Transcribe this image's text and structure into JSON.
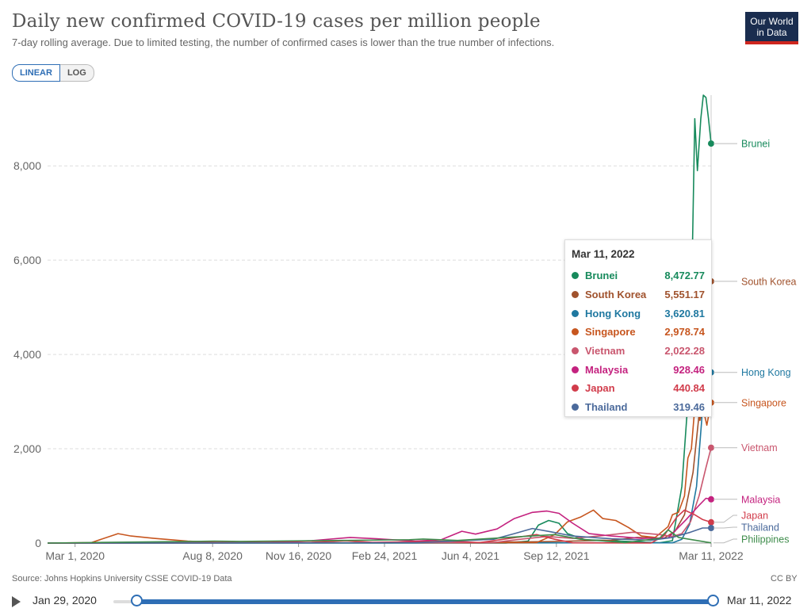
{
  "header": {
    "title": "Daily new confirmed COVID-19 cases per million people",
    "subtitle": "7-day rolling average. Due to limited testing, the number of confirmed cases is lower than the true number of infections.",
    "logo_line1": "Our World",
    "logo_line2": "in Data"
  },
  "toggle": {
    "linear_label": "LINEAR",
    "log_label": "LOG",
    "active": "LINEAR"
  },
  "tooltip": {
    "date": "Mar 11, 2022",
    "rows": [
      {
        "name": "Brunei",
        "value": "8,472.77",
        "color": "#178a5c"
      },
      {
        "name": "South Korea",
        "value": "5,551.17",
        "color": "#a0522d"
      },
      {
        "name": "Hong Kong",
        "value": "3,620.81",
        "color": "#1f78a0"
      },
      {
        "name": "Singapore",
        "value": "2,978.74",
        "color": "#c7561f"
      },
      {
        "name": "Vietnam",
        "value": "2,022.28",
        "color": "#c9566e"
      },
      {
        "name": "Malaysia",
        "value": "928.46",
        "color": "#c4227f"
      },
      {
        "name": "Japan",
        "value": "440.84",
        "color": "#d13c4b"
      },
      {
        "name": "Thailand",
        "value": "319.46",
        "color": "#4b6a9b"
      }
    ]
  },
  "footer": {
    "source": "Source: Johns Hopkins University CSSE COVID-19 Data",
    "license": "CC BY"
  },
  "timeline": {
    "start": "Jan 29, 2020",
    "end": "Mar 11, 2022",
    "start_fraction": 0.0,
    "end_fraction": 1.0
  },
  "chart_data": {
    "type": "line",
    "title": "Daily new confirmed COVID-19 cases per million people",
    "subtitle": "7-day rolling average. Due to limited testing, the number of confirmed cases is lower than the true number of infections.",
    "xlabel": "",
    "ylabel": "",
    "xlim": [
      "2020-01-29",
      "2022-03-11"
    ],
    "ylim": [
      0,
      9500
    ],
    "y_ticks": [
      0,
      2000,
      4000,
      6000,
      8000
    ],
    "y_tick_labels": [
      "0",
      "2,000",
      "4,000",
      "6,000",
      "8,000"
    ],
    "x_ticks": [
      "2020-03-01",
      "2020-08-08",
      "2020-11-16",
      "2021-02-24",
      "2021-06-04",
      "2021-09-12",
      "2022-03-11"
    ],
    "x_tick_labels": [
      "Mar 1, 2020",
      "Aug 8, 2020",
      "Nov 16, 2020",
      "Feb 24, 2021",
      "Jun 4, 2021",
      "Sep 12, 2021",
      "Mar 11, 2022"
    ],
    "grid": "horizontal dashed",
    "legend": "right end labels",
    "hover_date": "2022-03-11",
    "series": [
      {
        "name": "Brunei",
        "color": "#178a5c",
        "last": 8472.77,
        "points": [
          [
            "2020-01-29",
            0
          ],
          [
            "2021-07-15",
            0
          ],
          [
            "2021-08-10",
            40
          ],
          [
            "2021-08-22",
            380
          ],
          [
            "2021-09-03",
            480
          ],
          [
            "2021-09-15",
            420
          ],
          [
            "2021-09-25",
            200
          ],
          [
            "2021-10-15",
            70
          ],
          [
            "2021-11-15",
            50
          ],
          [
            "2022-01-10",
            5
          ],
          [
            "2022-01-25",
            50
          ],
          [
            "2022-02-05",
            1200
          ],
          [
            "2022-02-12",
            3000
          ],
          [
            "2022-02-16",
            5000
          ],
          [
            "2022-02-20",
            9000
          ],
          [
            "2022-02-23",
            7900
          ],
          [
            "2022-02-27",
            9000
          ],
          [
            "2022-03-02",
            9500
          ],
          [
            "2022-03-05",
            9450
          ],
          [
            "2022-03-08",
            9000
          ],
          [
            "2022-03-11",
            8472.77
          ]
        ]
      },
      {
        "name": "South Korea",
        "color": "#a0522d",
        "last": 5551.17,
        "points": [
          [
            "2020-01-29",
            0
          ],
          [
            "2021-06-01",
            10
          ],
          [
            "2021-09-01",
            30
          ],
          [
            "2021-11-15",
            60
          ],
          [
            "2021-12-15",
            120
          ],
          [
            "2022-01-15",
            100
          ],
          [
            "2022-01-28",
            250
          ],
          [
            "2022-02-08",
            600
          ],
          [
            "2022-02-18",
            1500
          ],
          [
            "2022-02-26",
            2900
          ],
          [
            "2022-03-03",
            4200
          ],
          [
            "2022-03-08",
            5200
          ],
          [
            "2022-03-11",
            5551.17
          ]
        ]
      },
      {
        "name": "Hong Kong",
        "color": "#1f78a0",
        "last": 3620.81,
        "points": [
          [
            "2020-01-29",
            0
          ],
          [
            "2022-01-25",
            5
          ],
          [
            "2022-02-05",
            80
          ],
          [
            "2022-02-14",
            400
          ],
          [
            "2022-02-22",
            1200
          ],
          [
            "2022-02-28",
            2600
          ],
          [
            "2022-03-03",
            4500
          ],
          [
            "2022-03-05",
            5750
          ],
          [
            "2022-03-08",
            5200
          ],
          [
            "2022-03-11",
            3620.81
          ]
        ]
      },
      {
        "name": "Singapore",
        "color": "#c7561f",
        "last": 2978.74,
        "points": [
          [
            "2020-01-29",
            0
          ],
          [
            "2020-03-20",
            10
          ],
          [
            "2020-04-20",
            200
          ],
          [
            "2020-05-05",
            150
          ],
          [
            "2020-06-01",
            100
          ],
          [
            "2020-07-10",
            40
          ],
          [
            "2020-08-20",
            10
          ],
          [
            "2021-06-01",
            5
          ],
          [
            "2021-08-20",
            10
          ],
          [
            "2021-09-10",
            180
          ],
          [
            "2021-09-25",
            450
          ],
          [
            "2021-10-10",
            550
          ],
          [
            "2021-10-25",
            700
          ],
          [
            "2021-11-05",
            520
          ],
          [
            "2021-11-20",
            480
          ],
          [
            "2021-12-05",
            330
          ],
          [
            "2021-12-20",
            150
          ],
          [
            "2022-01-05",
            120
          ],
          [
            "2022-01-20",
            350
          ],
          [
            "2022-01-25",
            600
          ],
          [
            "2022-02-01",
            650
          ],
          [
            "2022-02-08",
            1000
          ],
          [
            "2022-02-12",
            1800
          ],
          [
            "2022-02-16",
            2000
          ],
          [
            "2022-02-21",
            3100
          ],
          [
            "2022-02-26",
            2600
          ],
          [
            "2022-03-01",
            2900
          ],
          [
            "2022-03-06",
            2500
          ],
          [
            "2022-03-11",
            2978.74
          ]
        ]
      },
      {
        "name": "Vietnam",
        "color": "#c9566e",
        "last": 2022.28,
        "points": [
          [
            "2020-01-29",
            0
          ],
          [
            "2021-07-01",
            10
          ],
          [
            "2021-08-01",
            80
          ],
          [
            "2021-09-01",
            140
          ],
          [
            "2021-10-01",
            100
          ],
          [
            "2021-11-01",
            150
          ],
          [
            "2021-12-10",
            230
          ],
          [
            "2022-01-10",
            180
          ],
          [
            "2022-01-25",
            140
          ],
          [
            "2022-02-05",
            200
          ],
          [
            "2022-02-15",
            450
          ],
          [
            "2022-02-25",
            1000
          ],
          [
            "2022-03-05",
            1600
          ],
          [
            "2022-03-11",
            2022.28
          ]
        ]
      },
      {
        "name": "Malaysia",
        "color": "#c4227f",
        "last": 928.46,
        "points": [
          [
            "2020-01-29",
            0
          ],
          [
            "2020-10-01",
            10
          ],
          [
            "2020-12-01",
            50
          ],
          [
            "2021-01-15",
            120
          ],
          [
            "2021-02-15",
            90
          ],
          [
            "2021-04-01",
            40
          ],
          [
            "2021-05-01",
            70
          ],
          [
            "2021-05-25",
            250
          ],
          [
            "2021-06-10",
            190
          ],
          [
            "2021-07-05",
            300
          ],
          [
            "2021-07-25",
            520
          ],
          [
            "2021-08-15",
            650
          ],
          [
            "2021-09-01",
            680
          ],
          [
            "2021-09-15",
            630
          ],
          [
            "2021-10-01",
            420
          ],
          [
            "2021-10-20",
            200
          ],
          [
            "2021-11-15",
            150
          ],
          [
            "2021-12-20",
            100
          ],
          [
            "2022-01-20",
            110
          ],
          [
            "2022-02-10",
            500
          ],
          [
            "2022-02-25",
            800
          ],
          [
            "2022-03-05",
            950
          ],
          [
            "2022-03-11",
            928.46
          ]
        ]
      },
      {
        "name": "Japan",
        "color": "#d13c4b",
        "last": 440.84,
        "points": [
          [
            "2020-01-29",
            0
          ],
          [
            "2020-12-01",
            15
          ],
          [
            "2021-01-10",
            50
          ],
          [
            "2021-02-10",
            15
          ],
          [
            "2021-05-10",
            40
          ],
          [
            "2021-06-15",
            10
          ],
          [
            "2021-08-20",
            180
          ],
          [
            "2021-09-10",
            80
          ],
          [
            "2021-10-01",
            5
          ],
          [
            "2021-12-31",
            2
          ],
          [
            "2022-01-15",
            150
          ],
          [
            "2022-01-30",
            550
          ],
          [
            "2022-02-08",
            700
          ],
          [
            "2022-02-20",
            600
          ],
          [
            "2022-03-01",
            500
          ],
          [
            "2022-03-11",
            440.84
          ]
        ]
      },
      {
        "name": "Thailand",
        "color": "#4b6a9b",
        "last": 319.46,
        "points": [
          [
            "2020-01-29",
            0
          ],
          [
            "2021-04-01",
            5
          ],
          [
            "2021-05-01",
            30
          ],
          [
            "2021-07-01",
            80
          ],
          [
            "2021-07-25",
            200
          ],
          [
            "2021-08-15",
            310
          ],
          [
            "2021-09-05",
            240
          ],
          [
            "2021-10-01",
            150
          ],
          [
            "2021-11-15",
            90
          ],
          [
            "2021-12-31",
            60
          ],
          [
            "2022-01-25",
            120
          ],
          [
            "2022-02-15",
            230
          ],
          [
            "2022-03-01",
            320
          ],
          [
            "2022-03-11",
            319.46
          ]
        ]
      },
      {
        "name": "Philippines",
        "color": "#3e8c4b",
        "last": null,
        "points": [
          [
            "2020-01-29",
            0
          ],
          [
            "2020-08-10",
            40
          ],
          [
            "2020-09-10",
            35
          ],
          [
            "2021-03-25",
            70
          ],
          [
            "2021-04-10",
            85
          ],
          [
            "2021-05-20",
            55
          ],
          [
            "2021-09-10",
            180
          ],
          [
            "2021-10-10",
            80
          ],
          [
            "2021-12-01",
            10
          ],
          [
            "2022-01-10",
            100
          ],
          [
            "2022-01-20",
            280
          ],
          [
            "2022-02-01",
            120
          ],
          [
            "2022-03-11",
            5
          ]
        ]
      }
    ]
  }
}
